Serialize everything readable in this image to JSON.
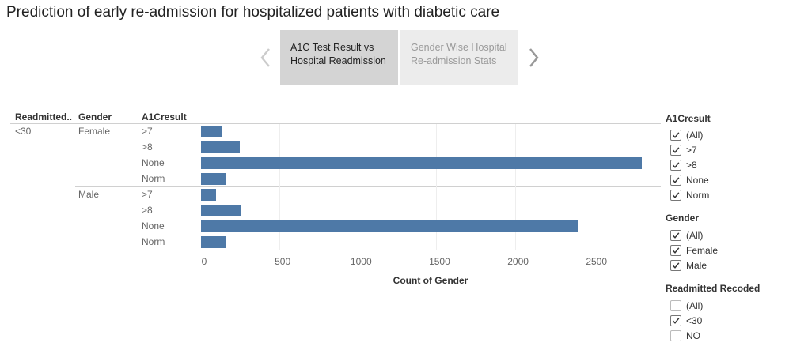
{
  "title": "Prediction of early re-admission for hospitalized patients with diabetic care",
  "story": {
    "points": [
      {
        "line1": "A1C Test Result vs",
        "line2": "Hospital Readmission",
        "active": true
      },
      {
        "line1": "Gender Wise Hospital",
        "line2": "Re-admission Stats",
        "active": false
      }
    ]
  },
  "table": {
    "headers": {
      "readmitted": "Readmitted..",
      "gender": "Gender",
      "a1c": "A1Cresult"
    },
    "readmitted_value": "<30",
    "genders": [
      "Female",
      "Male"
    ]
  },
  "chart_data": {
    "type": "bar",
    "orientation": "horizontal",
    "xlabel": "Count of Gender",
    "xlim": [
      0,
      2930
    ],
    "xticks": [
      "0",
      "500",
      "1000",
      "1500",
      "2000",
      "2500"
    ],
    "rows": [
      {
        "readmitted": "<30",
        "gender": "Female",
        "a1c": ">7",
        "value": 135
      },
      {
        "readmitted": "<30",
        "gender": "Female",
        "a1c": ">8",
        "value": 247
      },
      {
        "readmitted": "<30",
        "gender": "Female",
        "a1c": "None",
        "value": 2810
      },
      {
        "readmitted": "<30",
        "gender": "Female",
        "a1c": "Norm",
        "value": 160
      },
      {
        "readmitted": "<30",
        "gender": "Male",
        "a1c": ">7",
        "value": 95
      },
      {
        "readmitted": "<30",
        "gender": "Male",
        "a1c": ">8",
        "value": 252
      },
      {
        "readmitted": "<30",
        "gender": "Male",
        "a1c": "None",
        "value": 2400
      },
      {
        "readmitted": "<30",
        "gender": "Male",
        "a1c": "Norm",
        "value": 155
      }
    ],
    "bar_color": "#4e79a7",
    "grid": true
  },
  "filters": [
    {
      "title": "A1Cresult",
      "items": [
        {
          "label": "(All)",
          "checked": true
        },
        {
          "label": ">7",
          "checked": true
        },
        {
          "label": ">8",
          "checked": true
        },
        {
          "label": "None",
          "checked": true
        },
        {
          "label": "Norm",
          "checked": true
        }
      ]
    },
    {
      "title": "Gender",
      "items": [
        {
          "label": "(All)",
          "checked": true
        },
        {
          "label": "Female",
          "checked": true
        },
        {
          "label": "Male",
          "checked": true
        }
      ]
    },
    {
      "title": "Readmitted Recoded",
      "items": [
        {
          "label": "(All)",
          "checked": false
        },
        {
          "label": "<30",
          "checked": true
        },
        {
          "label": "NO",
          "checked": false
        }
      ]
    }
  ]
}
